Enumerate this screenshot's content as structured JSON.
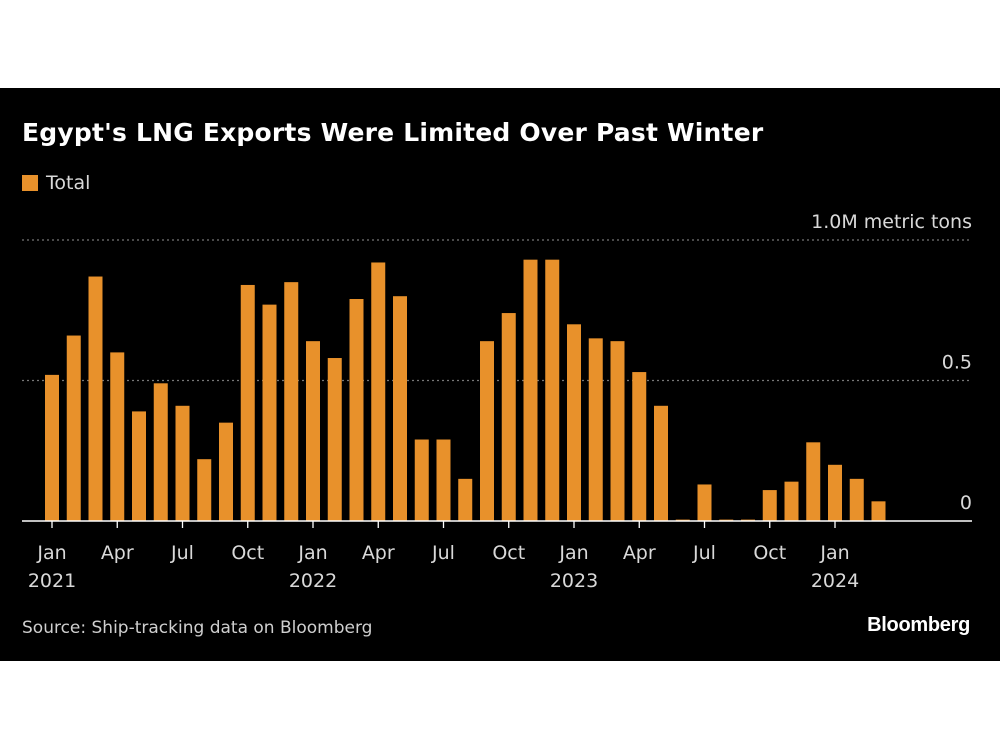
{
  "colors": {
    "bar": "#e8912b",
    "grid": "#777777",
    "axis": "#ffffff",
    "text": "#d9d9d9",
    "background": "#000000"
  },
  "chart_data": {
    "type": "bar",
    "title": "Egypt's LNG Exports Were Limited Over Past Winter",
    "legend": [
      "Total"
    ],
    "legend_position": "top-left",
    "unit": "M metric tons",
    "ylim": [
      0,
      1.0
    ],
    "y_ticks": [
      {
        "value": 0,
        "label": "0"
      },
      {
        "value": 0.5,
        "label": "0.5"
      },
      {
        "value": 1.0,
        "label": "1.0M metric tons"
      }
    ],
    "x_ticks": [
      {
        "index": 0,
        "label": "Jan",
        "year": "2021"
      },
      {
        "index": 3,
        "label": "Apr",
        "year": ""
      },
      {
        "index": 6,
        "label": "Jul",
        "year": ""
      },
      {
        "index": 9,
        "label": "Oct",
        "year": ""
      },
      {
        "index": 12,
        "label": "Jan",
        "year": "2022"
      },
      {
        "index": 15,
        "label": "Apr",
        "year": ""
      },
      {
        "index": 18,
        "label": "Jul",
        "year": ""
      },
      {
        "index": 21,
        "label": "Oct",
        "year": ""
      },
      {
        "index": 24,
        "label": "Jan",
        "year": "2023"
      },
      {
        "index": 27,
        "label": "Apr",
        "year": ""
      },
      {
        "index": 30,
        "label": "Jul",
        "year": ""
      },
      {
        "index": 33,
        "label": "Oct",
        "year": ""
      },
      {
        "index": 36,
        "label": "Jan",
        "year": "2024"
      }
    ],
    "categories": [
      "2021-01",
      "2021-02",
      "2021-03",
      "2021-04",
      "2021-05",
      "2021-06",
      "2021-07",
      "2021-08",
      "2021-09",
      "2021-10",
      "2021-11",
      "2021-12",
      "2022-01",
      "2022-02",
      "2022-03",
      "2022-04",
      "2022-05",
      "2022-06",
      "2022-07",
      "2022-08",
      "2022-09",
      "2022-10",
      "2022-11",
      "2022-12",
      "2023-01",
      "2023-02",
      "2023-03",
      "2023-04",
      "2023-05",
      "2023-06",
      "2023-07",
      "2023-08",
      "2023-09",
      "2023-10",
      "2023-11",
      "2023-12",
      "2024-01",
      "2024-02",
      "2024-03",
      "2024-04"
    ],
    "series": [
      {
        "name": "Total",
        "values": [
          0.52,
          0.66,
          0.87,
          0.6,
          0.39,
          0.49,
          0.41,
          0.22,
          0.35,
          0.84,
          0.77,
          0.85,
          0.64,
          0.58,
          0.79,
          0.92,
          0.8,
          0.29,
          0.29,
          0.15,
          0.64,
          0.74,
          0.93,
          0.93,
          0.7,
          0.65,
          0.64,
          0.53,
          0.41,
          0.005,
          0.13,
          0.005,
          0.005,
          0.11,
          0.14,
          0.28,
          0.2,
          0.15,
          0.07,
          0.0
        ]
      }
    ],
    "grid": true
  },
  "source": "Source: Ship-tracking data on Bloomberg",
  "brand": "Bloomberg"
}
